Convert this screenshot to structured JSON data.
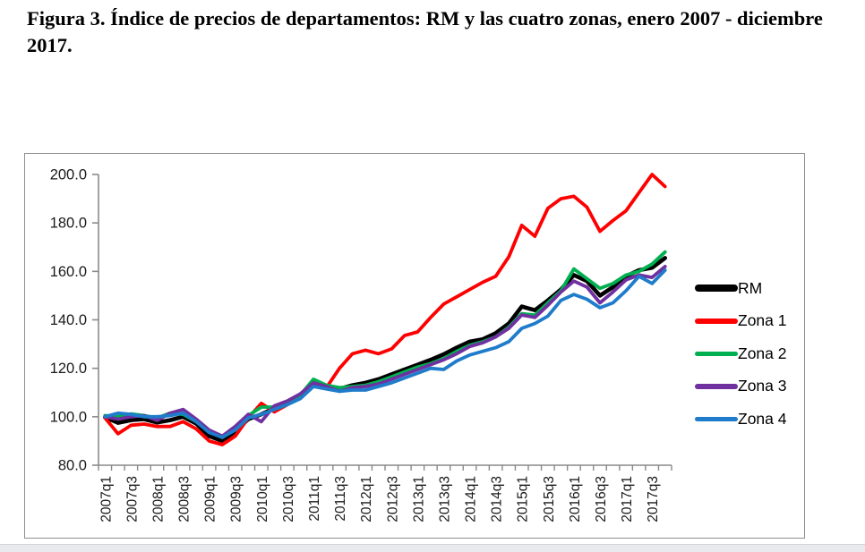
{
  "title": "Figura 3. Índice de precios de departamentos: RM y las cuatro zonas, enero 2007 - diciembre 2017.",
  "chart_data": {
    "type": "line",
    "title": "",
    "xlabel": "",
    "ylabel": "",
    "ylim": [
      80,
      200
    ],
    "y_ticks": [
      80,
      100,
      120,
      140,
      160,
      180,
      200
    ],
    "y_tick_decimals": 1,
    "grid": false,
    "legend_position": "right",
    "axis_color": "#8a8a8a",
    "categories": [
      "2007q1",
      "2007q2",
      "2007q3",
      "2007q4",
      "2008q1",
      "2008q2",
      "2008q3",
      "2008q4",
      "2009q1",
      "2009q2",
      "2009q3",
      "2009q4",
      "2010q1",
      "2010q2",
      "2010q3",
      "2010q4",
      "2011q1",
      "2011q2",
      "2011q3",
      "2011q4",
      "2012q1",
      "2012q2",
      "2012q3",
      "2012q4",
      "2013q1",
      "2013q2",
      "2013q3",
      "2013q4",
      "2014q1",
      "2014q2",
      "2014q3",
      "2014q4",
      "2015q1",
      "2015q2",
      "2015q3",
      "2015q4",
      "2016q1",
      "2016q2",
      "2016q3",
      "2016q4",
      "2017q1",
      "2017q2",
      "2017q3",
      "2017q4"
    ],
    "x_labels_shown": [
      "2007q1",
      "2007q3",
      "2008q1",
      "2008q3",
      "2009q1",
      "2009q3",
      "2010q1",
      "2010q3",
      "2011q1",
      "2011q3",
      "2012q1",
      "2012q3",
      "2013q1",
      "2013q3",
      "2014q1",
      "2014q3",
      "2015q1",
      "2015q3",
      "2016q1",
      "2016q3",
      "2017q1",
      "2017q3"
    ],
    "series": [
      {
        "name": "RM",
        "color": "#000000",
        "stroke_width": 4.6,
        "values": [
          99.8,
          97.5,
          98.6,
          99.0,
          97.6,
          98.6,
          100.0,
          97.2,
          92.0,
          90.0,
          94.0,
          99.0,
          101.0,
          103.5,
          105.5,
          108.0,
          113.5,
          112.0,
          111.5,
          113.0,
          114.0,
          115.5,
          117.5,
          119.5,
          121.5,
          123.5,
          125.8,
          128.5,
          131.0,
          132.0,
          134.5,
          138.5,
          145.5,
          144.0,
          148.0,
          152.5,
          158.5,
          156.0,
          150.0,
          153.5,
          158.0,
          160.5,
          161.5,
          165.5
        ]
      },
      {
        "name": "Zona 1",
        "color": "#fe0000",
        "stroke_width": 3.8,
        "values": [
          99.5,
          93.0,
          96.5,
          97.0,
          96.0,
          96.0,
          98.0,
          95.0,
          90.0,
          88.5,
          92.0,
          99.5,
          105.5,
          102.0,
          105.0,
          108.5,
          114.5,
          112.0,
          120.0,
          126.0,
          127.5,
          126.0,
          128.0,
          133.5,
          135.0,
          141.0,
          146.5,
          149.5,
          152.5,
          155.5,
          158.0,
          166.0,
          179.0,
          174.5,
          186.0,
          190.0,
          191.0,
          186.5,
          176.5,
          181.0,
          185.0,
          192.5,
          200.0,
          195.0
        ]
      },
      {
        "name": "Zona 2",
        "color": "#00b050",
        "stroke_width": 3.8,
        "values": [
          100.5,
          100.0,
          101.2,
          100.5,
          99.5,
          101.5,
          101.0,
          98.0,
          94.0,
          91.5,
          95.0,
          100.5,
          104.0,
          104.0,
          106.0,
          109.0,
          115.5,
          113.0,
          112.0,
          112.5,
          113.0,
          114.5,
          116.5,
          118.5,
          120.5,
          122.0,
          124.0,
          127.0,
          129.5,
          131.0,
          133.0,
          137.0,
          142.5,
          142.0,
          147.0,
          152.0,
          161.0,
          157.0,
          153.0,
          155.0,
          158.5,
          160.0,
          163.0,
          168.0
        ]
      },
      {
        "name": "Zona 3",
        "color": "#7030a0",
        "stroke_width": 3.8,
        "values": [
          100.0,
          99.0,
          100.0,
          100.5,
          98.5,
          101.5,
          103.0,
          99.0,
          94.5,
          92.0,
          96.0,
          101.0,
          98.0,
          104.5,
          106.5,
          109.5,
          114.0,
          112.5,
          110.5,
          112.0,
          112.5,
          113.5,
          115.5,
          117.5,
          119.5,
          121.5,
          123.5,
          126.0,
          129.0,
          130.5,
          133.0,
          136.5,
          142.0,
          141.0,
          146.0,
          151.5,
          156.0,
          153.5,
          147.0,
          151.5,
          156.5,
          158.5,
          157.5,
          162.0
        ]
      },
      {
        "name": "Zona 4",
        "color": "#1f7ccb",
        "stroke_width": 3.8,
        "values": [
          100.0,
          101.5,
          101.0,
          100.0,
          100.0,
          100.5,
          101.5,
          98.0,
          93.5,
          91.5,
          94.5,
          99.5,
          101.0,
          103.0,
          105.0,
          107.5,
          112.5,
          111.5,
          110.5,
          111.0,
          111.0,
          112.5,
          114.0,
          116.0,
          118.0,
          120.0,
          119.5,
          123.0,
          125.5,
          127.0,
          128.5,
          131.0,
          136.5,
          138.5,
          141.5,
          148.0,
          150.5,
          148.5,
          145.0,
          147.0,
          152.0,
          158.0,
          155.0,
          160.5
        ]
      }
    ]
  }
}
